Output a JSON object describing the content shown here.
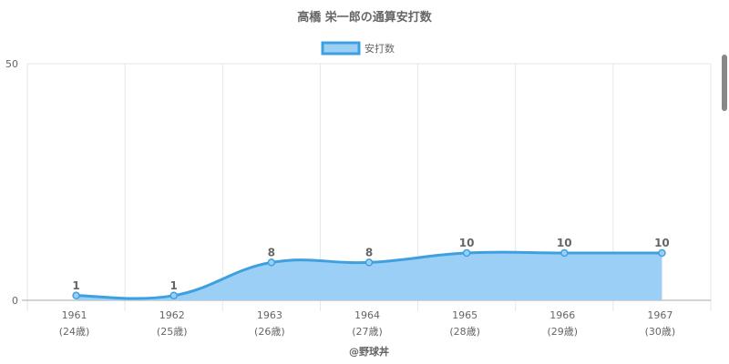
{
  "chart_data": {
    "type": "area",
    "title": "高橋 栄一郎の通算安打数",
    "categories": [
      "1961",
      "1962",
      "1963",
      "1964",
      "1965",
      "1966",
      "1967"
    ],
    "sublabels": [
      "(24歳)",
      "(25歳)",
      "(26歳)",
      "(27歳)",
      "(28歳)",
      "(29歳)",
      "(30歳)"
    ],
    "series": [
      {
        "name": "安打数",
        "values": [
          1,
          1,
          8,
          8,
          10,
          10,
          10
        ]
      }
    ],
    "ylim": [
      0,
      50
    ],
    "yticks": [
      "0",
      "50"
    ],
    "grid": true,
    "legend": "top-center",
    "data_labels": [
      "1",
      "1",
      "8",
      "8",
      "10",
      "10",
      "10"
    ],
    "credit": "@野球丼",
    "colors": {
      "line": "#3fa0e0",
      "fill": "#9bcff5",
      "grid": "#e6e6e6",
      "text": "#666666"
    }
  }
}
